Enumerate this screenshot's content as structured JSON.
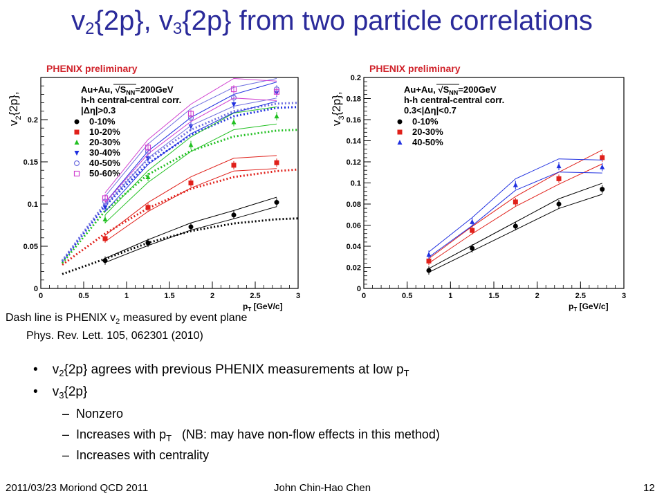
{
  "slide": {
    "title_parts": [
      "v",
      "2",
      "{2p}, v",
      "3",
      "{2p} from two particle correlations"
    ],
    "note_line1_parts": [
      "Dash line is PHENIX v",
      "2",
      " measured by event plane"
    ],
    "note_line2": "Phys. Rev. Lett. 105, 062301 (2010)",
    "bullets": [
      {
        "parts": [
          "v",
          "2",
          "{2p} agrees with previous PHENIX measurements at low p",
          "T"
        ]
      },
      {
        "parts": [
          "v",
          "3",
          "{2p}"
        ]
      }
    ],
    "subbullets": [
      {
        "parts": [
          "Nonzero"
        ]
      },
      {
        "parts": [
          "Increases with p",
          "T",
          "   (NB: may have non-flow effects in this method)"
        ]
      },
      {
        "parts": [
          "Increases with centrality"
        ]
      }
    ],
    "dash": "–",
    "bullet_symbol": "•",
    "footer_left": "2011/03/23 Moriond QCD 2011",
    "footer_center": "John Chin-Hao Chen",
    "footer_right": "12"
  },
  "chart_data": [
    {
      "type": "scatter",
      "header": "PHENIX preliminary",
      "header_color": "#d0222a",
      "ylabel_parts": [
        "v",
        "2",
        "{2p},"
      ],
      "xlabel_parts": [
        "p",
        "T",
        " [GeV/c]"
      ],
      "annotations": [
        "Au+Au, √S",
        "NN",
        "=200GeV",
        "h-h central-central corr.",
        "|Δη|>0.3"
      ],
      "xlim": [
        0,
        3
      ],
      "ylim": [
        0,
        0.25
      ],
      "xticks": [
        "0",
        "0.5",
        "1",
        "1.5",
        "2",
        "2.5",
        "3"
      ],
      "yticks": [
        "0",
        "0.05",
        "0.1",
        "0.15",
        "0.2"
      ],
      "ytick_values": [
        0,
        0.05,
        0.1,
        0.15,
        0.2
      ],
      "grid": false,
      "legend_position": "top-left",
      "series": [
        {
          "name": "0-10%",
          "color": "#000000",
          "marker": "circle",
          "x": [
            0.75,
            1.25,
            1.75,
            2.25,
            2.75
          ],
          "y": [
            0.033,
            0.054,
            0.073,
            0.087,
            0.102
          ]
        },
        {
          "name": "10-20%",
          "color": "#e0201a",
          "marker": "square",
          "x": [
            0.75,
            1.25,
            1.75,
            2.25,
            2.75
          ],
          "y": [
            0.059,
            0.096,
            0.125,
            0.146,
            0.149
          ]
        },
        {
          "name": "20-30%",
          "color": "#22c022",
          "marker": "triangle-up",
          "x": [
            0.75,
            1.25,
            1.75,
            2.25,
            2.75
          ],
          "y": [
            0.082,
            0.132,
            0.17,
            0.197,
            0.204
          ]
        },
        {
          "name": "30-40%",
          "color": "#2030e0",
          "marker": "triangle-down",
          "x": [
            0.75,
            1.25,
            1.75,
            2.25,
            2.75
          ],
          "y": [
            0.096,
            0.154,
            0.192,
            0.218,
            0.232
          ]
        },
        {
          "name": "40-50%",
          "color": "#7070e0",
          "marker": "circle-open",
          "x": [
            0.75,
            1.25,
            1.75,
            2.25,
            2.75
          ],
          "y": [
            0.103,
            0.162,
            0.202,
            0.226,
            0.236
          ]
        },
        {
          "name": "50-60%",
          "color": "#d040d0",
          "marker": "square-open",
          "x": [
            0.75,
            1.25,
            1.75,
            2.25,
            2.75
          ],
          "y": [
            0.107,
            0.167,
            0.207,
            0.236,
            0.233
          ]
        }
      ],
      "event_plane_dashed": [
        {
          "color": "#000000",
          "x": [
            0.25,
            0.75,
            1.25,
            1.75,
            2.25,
            2.75,
            3.0
          ],
          "y": [
            0.017,
            0.035,
            0.054,
            0.068,
            0.077,
            0.082,
            0.083
          ]
        },
        {
          "color": "#e0201a",
          "x": [
            0.25,
            0.75,
            1.25,
            1.75,
            2.25,
            2.75,
            3.0
          ],
          "y": [
            0.028,
            0.065,
            0.095,
            0.118,
            0.132,
            0.139,
            0.141
          ]
        },
        {
          "color": "#22c022",
          "x": [
            0.25,
            0.75,
            1.25,
            1.75,
            2.25,
            2.75,
            3.0
          ],
          "y": [
            0.03,
            0.092,
            0.135,
            0.163,
            0.18,
            0.187,
            0.188
          ]
        },
        {
          "color": "#2030e0",
          "x": [
            0.25,
            0.75,
            1.25,
            1.75,
            2.25,
            2.75,
            3.0
          ],
          "y": [
            0.032,
            0.098,
            0.148,
            0.182,
            0.204,
            0.214,
            0.215
          ]
        },
        {
          "color": "#7070e0",
          "x": [
            0.25,
            0.75,
            1.25,
            1.75,
            2.25,
            2.75,
            3.0
          ],
          "y": [
            0.033,
            0.101,
            0.153,
            0.188,
            0.21,
            0.219,
            0.22
          ]
        }
      ]
    },
    {
      "type": "scatter",
      "header": "PHENIX preliminary",
      "header_color": "#d0222a",
      "ylabel_parts": [
        "v",
        "3",
        "{2p},"
      ],
      "xlabel_parts": [
        "p",
        "T",
        " [GeV/c]"
      ],
      "annotations": [
        "Au+Au, √S",
        "NN",
        "=200GeV",
        "h-h central-central corr.",
        "0.3<|Δη|<0.7"
      ],
      "xlim": [
        0,
        3
      ],
      "ylim": [
        0,
        0.2
      ],
      "xticks": [
        "0",
        "0.5",
        "1",
        "1.5",
        "2",
        "2.5",
        "3"
      ],
      "yticks": [
        "0",
        "0.02",
        "0.04",
        "0.06",
        "0.08",
        "0.1",
        "0.12",
        "0.14",
        "0.16",
        "0.18",
        "0.2"
      ],
      "ytick_values": [
        0,
        0.02,
        0.04,
        0.06,
        0.08,
        0.1,
        0.12,
        0.14,
        0.16,
        0.18,
        0.2
      ],
      "grid": false,
      "legend_position": "top-left",
      "series": [
        {
          "name": "0-10%",
          "color": "#000000",
          "marker": "circle",
          "x": [
            0.75,
            1.25,
            1.75,
            2.25,
            2.75
          ],
          "y": [
            0.017,
            0.038,
            0.059,
            0.08,
            0.094
          ]
        },
        {
          "name": "20-30%",
          "color": "#e0201a",
          "marker": "square",
          "x": [
            0.75,
            1.25,
            1.75,
            2.25,
            2.75
          ],
          "y": [
            0.026,
            0.055,
            0.082,
            0.104,
            0.124
          ]
        },
        {
          "name": "40-50%",
          "color": "#2030e0",
          "marker": "triangle-up",
          "x": [
            0.75,
            1.25,
            1.75,
            2.25,
            2.75
          ],
          "y": [
            0.032,
            0.063,
            0.098,
            0.116,
            0.115
          ]
        }
      ]
    }
  ]
}
